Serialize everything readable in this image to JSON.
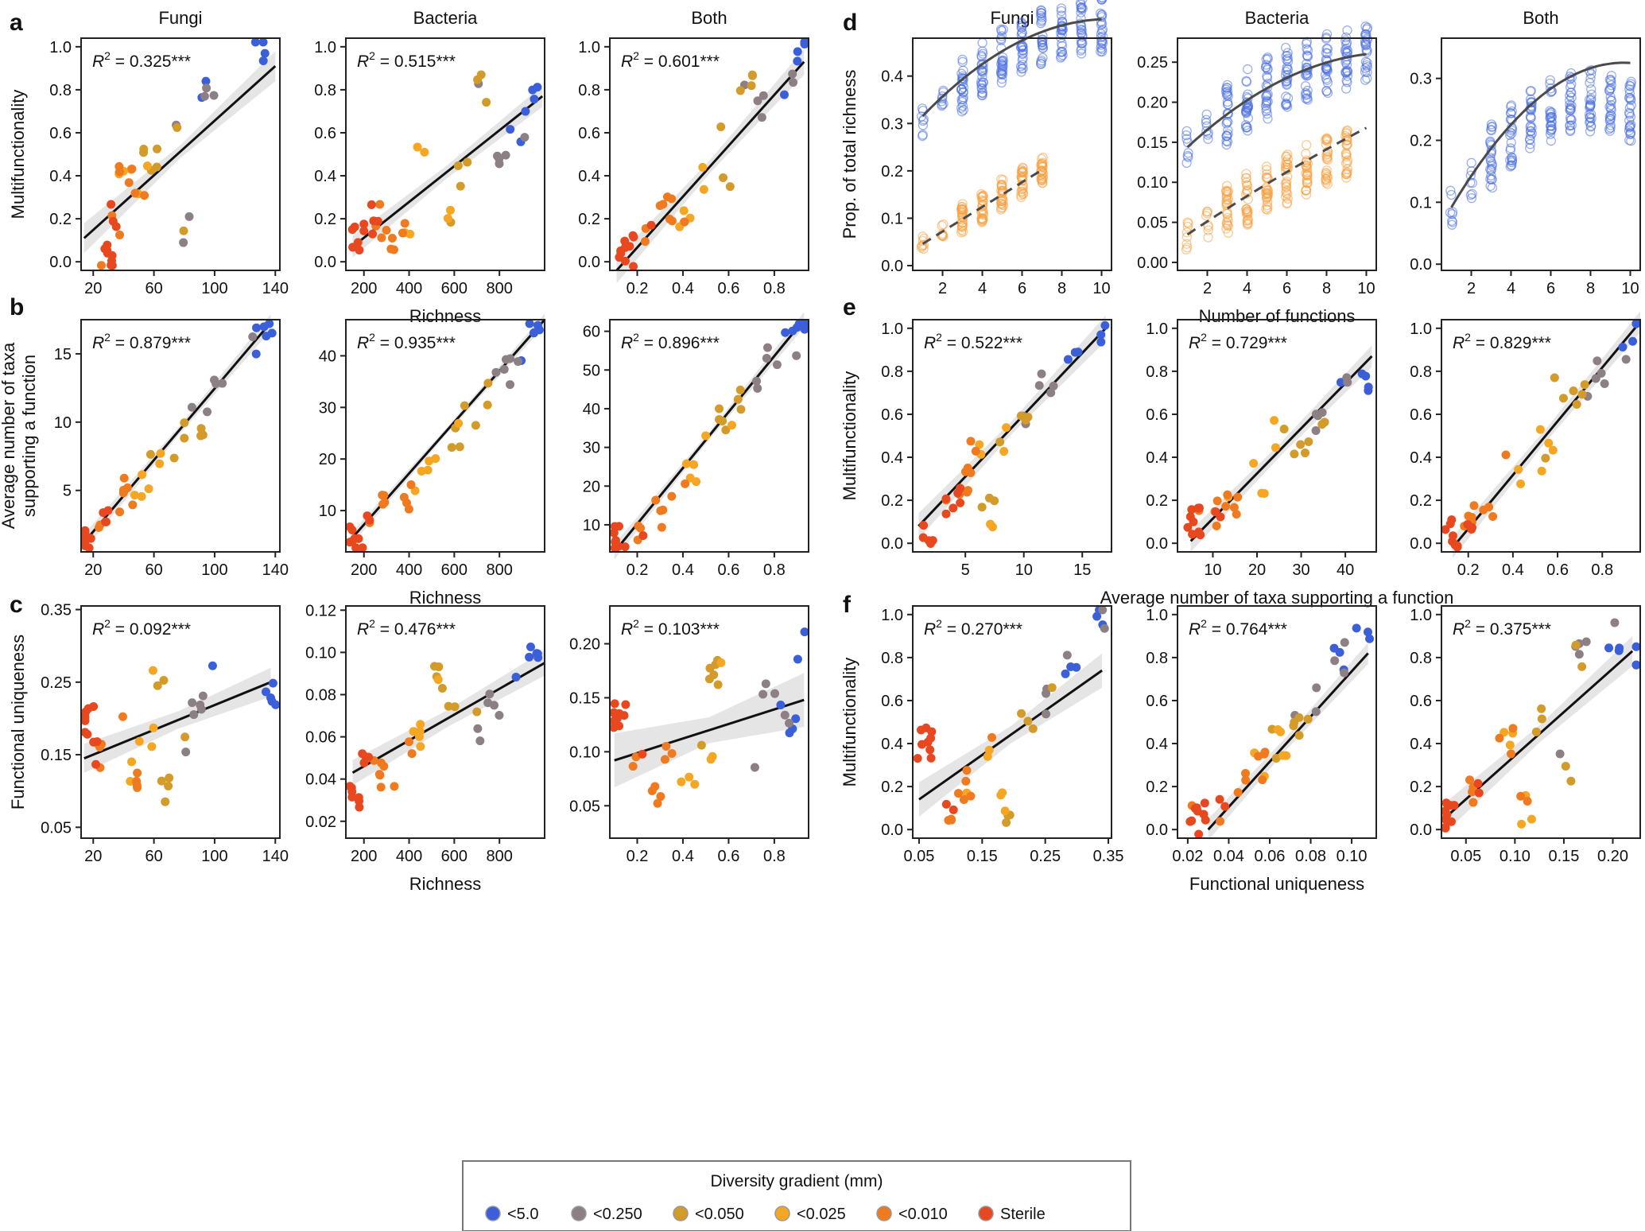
{
  "figure": {
    "panel_letters": [
      "a",
      "b",
      "c",
      "d",
      "e",
      "f"
    ],
    "column_titles": [
      "Fungi",
      "Bacteria",
      "Both"
    ]
  },
  "colors": {
    "<5.0": "#3b5fd9",
    "<0.250": "#8c8085",
    "<0.050": "#d39b2a",
    "<0.025": "#f5a623",
    "<0.010": "#f07a1f",
    "Sterile": "#e8481f"
  },
  "legend": {
    "title": "Diversity gradient (mm)",
    "items": [
      "<5.0",
      "<0.250",
      "<0.050",
      "<0.025",
      "<0.010",
      "Sterile"
    ]
  },
  "chart_data": [
    {
      "id": "a1",
      "panel": "a",
      "col": 0,
      "row": 0,
      "type": "scatter",
      "title": "Fungi",
      "xlabel": "",
      "ylabel": "Multifunctionality",
      "r2": "0.325",
      "xlim": [
        12,
        143
      ],
      "ylim": [
        -0.04,
        1.04
      ],
      "xticks": [
        20,
        60,
        100,
        140
      ],
      "yticks": [
        0.0,
        0.2,
        0.4,
        0.6,
        0.8,
        1.0
      ],
      "x_points": [
        28,
        35,
        42,
        52,
        57,
        75,
        80,
        95,
        130
      ],
      "y_points": [
        0.05,
        0.2,
        0.4,
        0.3,
        0.45,
        0.6,
        0.15,
        0.8,
        1.0
      ],
      "group_counts": [
        6,
        6,
        7,
        6,
        9,
        11
      ],
      "fit": [
        [
          14,
          0.11
        ],
        [
          140,
          0.91
        ]
      ],
      "band": [
        0.07,
        0.03
      ]
    },
    {
      "id": "a2",
      "panel": "a",
      "col": 1,
      "row": 0,
      "type": "scatter",
      "title": "Bacteria",
      "xlabel": "Richness",
      "ylabel": "",
      "r2": "0.515",
      "xlim": [
        120,
        1000
      ],
      "ylim": [
        -0.04,
        1.04
      ],
      "xticks": [
        200,
        400,
        600,
        800
      ],
      "yticks": [
        0.0,
        0.2,
        0.4,
        0.6,
        0.8,
        1.0
      ],
      "x_points": [
        170,
        240,
        300,
        380,
        470,
        560,
        650,
        720,
        800,
        880,
        950
      ],
      "y_points": [
        0.1,
        0.2,
        0.1,
        0.15,
        0.5,
        0.25,
        0.4,
        0.8,
        0.45,
        0.6,
        0.75
      ],
      "group_counts": [
        6,
        6,
        7,
        6,
        9,
        11
      ],
      "fit": [
        [
          150,
          0.07
        ],
        [
          990,
          0.77
        ]
      ],
      "band": [
        0.05,
        0.03
      ]
    },
    {
      "id": "a3",
      "panel": "a",
      "col": 2,
      "row": 0,
      "type": "scatter",
      "title": "Both",
      "xlabel": "",
      "ylabel": "",
      "r2": "0.601",
      "xlim": [
        0.08,
        0.95
      ],
      "ylim": [
        -0.04,
        1.04
      ],
      "xticks": [
        0.2,
        0.4,
        0.6,
        0.8
      ],
      "yticks": [
        0.0,
        0.2,
        0.4,
        0.6,
        0.8,
        1.0
      ],
      "x_points": [
        0.15,
        0.25,
        0.33,
        0.42,
        0.5,
        0.55,
        0.6,
        0.67,
        0.75,
        0.85,
        0.93
      ],
      "y_points": [
        0.05,
        0.15,
        0.25,
        0.2,
        0.4,
        0.6,
        0.35,
        0.8,
        0.7,
        0.85,
        1.0
      ],
      "group_counts": [
        6,
        6,
        7,
        6,
        9,
        11
      ],
      "fit": [
        [
          0.11,
          -0.04
        ],
        [
          0.93,
          0.93
        ]
      ],
      "band": [
        0.06,
        0.03
      ]
    },
    {
      "id": "b1",
      "panel": "b",
      "col": 0,
      "row": 1,
      "type": "scatter",
      "title": "",
      "xlabel": "",
      "ylabel": "Average number of taxa supporting a function",
      "r2": "0.879",
      "xlim": [
        12,
        143
      ],
      "ylim": [
        0.5,
        17.5
      ],
      "xticks": [
        20,
        60,
        100,
        140
      ],
      "yticks": [
        5,
        10,
        15
      ],
      "x_points": [
        15,
        25,
        35,
        45,
        52,
        60,
        70,
        80,
        90,
        100,
        125,
        135
      ],
      "y_points": [
        1,
        2.5,
        4,
        5,
        5.5,
        7,
        7.5,
        9,
        10,
        13,
        16,
        17
      ],
      "group_counts": [
        6,
        6,
        7,
        6,
        9,
        11
      ],
      "fit": [
        [
          14,
          1.2
        ],
        [
          137,
          17.3
        ]
      ],
      "band": [
        0.6,
        0.3
      ]
    },
    {
      "id": "b2",
      "panel": "b",
      "col": 1,
      "row": 1,
      "type": "scatter",
      "title": "",
      "xlabel": "Richness",
      "ylabel": "",
      "r2": "0.935",
      "xlim": [
        120,
        1000
      ],
      "ylim": [
        2,
        47
      ],
      "xticks": [
        200,
        400,
        600,
        800
      ],
      "yticks": [
        10,
        20,
        30,
        40
      ],
      "x_points": [
        160,
        220,
        300,
        380,
        450,
        520,
        600,
        680,
        750,
        820,
        880,
        960
      ],
      "y_points": [
        5,
        8,
        10,
        12,
        15,
        20,
        25,
        28,
        32,
        37,
        40,
        45
      ],
      "group_counts": [
        6,
        6,
        7,
        6,
        9,
        11
      ],
      "fit": [
        [
          150,
          4.8
        ],
        [
          1000,
          47
        ]
      ],
      "band": [
        1.2,
        0.6
      ]
    },
    {
      "id": "b3",
      "panel": "b",
      "col": 2,
      "row": 1,
      "type": "scatter",
      "title": "",
      "xlabel": "",
      "ylabel": "",
      "r2": "0.896",
      "xlim": [
        0.08,
        0.95
      ],
      "ylim": [
        3,
        63
      ],
      "xticks": [
        0.2,
        0.4,
        0.6,
        0.8
      ],
      "yticks": [
        10,
        20,
        30,
        40,
        50,
        60
      ],
      "x_points": [
        0.12,
        0.2,
        0.3,
        0.38,
        0.45,
        0.52,
        0.58,
        0.65,
        0.72,
        0.8,
        0.88,
        0.93
      ],
      "y_points": [
        6,
        10,
        13,
        17,
        23,
        33,
        38,
        42,
        47,
        53,
        56,
        61
      ],
      "group_counts": [
        6,
        6,
        7,
        6,
        9,
        11
      ],
      "fit": [
        [
          0.1,
          3
        ],
        [
          0.93,
          63
        ]
      ],
      "band": [
        2,
        1
      ]
    },
    {
      "id": "c1",
      "panel": "c",
      "col": 0,
      "row": 2,
      "type": "scatter",
      "title": "",
      "xlabel": "",
      "ylabel": "Functional uniqueness",
      "r2": "0.092",
      "xlim": [
        12,
        143
      ],
      "ylim": [
        0.035,
        0.355
      ],
      "xticks": [
        20,
        60,
        100,
        140
      ],
      "yticks": [
        0.05,
        0.15,
        0.25,
        0.35
      ],
      "x_points": [
        15,
        25,
        35,
        45,
        55,
        62,
        70,
        80,
        90,
        100,
        135
      ],
      "y_points": [
        0.2,
        0.15,
        0.22,
        0.12,
        0.18,
        0.25,
        0.1,
        0.16,
        0.22,
        0.28,
        0.23
      ],
      "group_counts": [
        6,
        6,
        7,
        6,
        9,
        11
      ],
      "fit": [
        [
          14,
          0.145
        ],
        [
          137,
          0.25
        ]
      ],
      "band": [
        0.02,
        0.012
      ]
    },
    {
      "id": "c2",
      "panel": "c",
      "col": 1,
      "row": 2,
      "type": "scatter",
      "title": "",
      "xlabel": "Richness",
      "ylabel": "",
      "r2": "0.476",
      "xlim": [
        120,
        1000
      ],
      "ylim": [
        0.012,
        0.122
      ],
      "xticks": [
        200,
        400,
        600,
        800
      ],
      "yticks": [
        0.02,
        0.04,
        0.06,
        0.08,
        0.1,
        0.12
      ],
      "x_points": [
        160,
        220,
        300,
        380,
        450,
        520,
        600,
        700,
        780,
        860,
        950
      ],
      "y_points": [
        0.03,
        0.045,
        0.04,
        0.055,
        0.06,
        0.09,
        0.07,
        0.065,
        0.075,
        0.09,
        0.095
      ],
      "group_counts": [
        6,
        6,
        7,
        6,
        9,
        11
      ],
      "fit": [
        [
          150,
          0.043
        ],
        [
          1000,
          0.095
        ]
      ],
      "band": [
        0.006,
        0.004
      ]
    },
    {
      "id": "c3",
      "panel": "c",
      "col": 2,
      "row": 2,
      "type": "scatter",
      "title": "",
      "xlabel": "",
      "ylabel": "",
      "r2": "0.103",
      "xlim": [
        0.08,
        0.95
      ],
      "ylim": [
        0.02,
        0.235
      ],
      "xticks": [
        0.2,
        0.4,
        0.6,
        0.8
      ],
      "yticks": [
        0.05,
        0.1,
        0.15,
        0.2
      ],
      "x_points": [
        0.12,
        0.2,
        0.28,
        0.35,
        0.42,
        0.5,
        0.55,
        0.62,
        0.7,
        0.78,
        0.86,
        0.93
      ],
      "y_points": [
        0.13,
        0.1,
        0.06,
        0.1,
        0.08,
        0.1,
        0.17,
        0.12,
        0.09,
        0.15,
        0.13,
        0.2
      ],
      "group_counts": [
        6,
        6,
        7,
        6,
        9,
        11
      ],
      "fit": [
        [
          0.1,
          0.092
        ],
        [
          0.93,
          0.148
        ]
      ],
      "band": [
        0.025,
        0.012
      ]
    },
    {
      "id": "d1",
      "panel": "d",
      "col": 3,
      "row": 0,
      "type": "scatter",
      "title": "Fungi",
      "xlabel": "",
      "ylabel": "Prop. of total richness",
      "xlim": [
        0.5,
        10.5
      ],
      "ylim": [
        -0.01,
        0.48
      ],
      "xticks": [
        2,
        4,
        6,
        8,
        10
      ],
      "yticks": [
        0.0,
        0.1,
        0.2,
        0.3,
        0.4
      ],
      "upper": {
        "xmax": 10,
        "a": 0.26,
        "b": 0.048,
        "c": -0.0023,
        "spread": 0.09
      },
      "lower": {
        "xmax": 7,
        "a": 0.02,
        "b": 0.026,
        "c": 0,
        "spread": 0.05
      },
      "fit_upper": [
        0.27,
        0.048,
        -0.0023
      ],
      "fit_lower": [
        0.02,
        0.026,
        0
      ]
    },
    {
      "id": "d2",
      "panel": "d",
      "col": 4,
      "row": 0,
      "type": "scatter",
      "title": "Bacteria",
      "xlabel": "Number of functions",
      "ylabel": "",
      "xlim": [
        0.5,
        10.5
      ],
      "ylim": [
        -0.01,
        0.28
      ],
      "xticks": [
        2,
        4,
        6,
        8,
        10
      ],
      "yticks": [
        0.0,
        0.05,
        0.1,
        0.15,
        0.2,
        0.25
      ],
      "upper": {
        "xmax": 10,
        "a": 0.12,
        "b": 0.025,
        "c": -0.0011,
        "spread": 0.06
      },
      "lower": {
        "xmax": 9,
        "a": 0.015,
        "b": 0.018,
        "c": -0.0005,
        "spread": 0.05
      },
      "fit_upper": [
        0.12,
        0.025,
        -0.0011
      ],
      "fit_lower": [
        0.018,
        0.017,
        -0.0002
      ]
    },
    {
      "id": "d3",
      "panel": "d",
      "col": 5,
      "row": 0,
      "type": "scatter",
      "title": "Both",
      "xlabel": "",
      "ylabel": "",
      "xlim": [
        0.5,
        10.5
      ],
      "ylim": [
        -0.01,
        0.365
      ],
      "xticks": [
        2,
        4,
        6,
        8,
        10
      ],
      "yticks": [
        0.0,
        0.1,
        0.2,
        0.3
      ],
      "upper": {
        "xmax": 10,
        "a": 0.04,
        "b": 0.055,
        "c": -0.0034,
        "spread": 0.08
      },
      "fit_upper": [
        0.035,
        0.06,
        -0.0031
      ]
    },
    {
      "id": "e1",
      "panel": "e",
      "col": 3,
      "row": 1,
      "type": "scatter",
      "title": "",
      "xlabel": "",
      "ylabel": "Multifunctionality",
      "r2": "0.522",
      "xlim": [
        0.5,
        17.5
      ],
      "ylim": [
        -0.04,
        1.04
      ],
      "xticks": [
        5,
        10,
        15
      ],
      "yticks": [
        0.0,
        0.2,
        0.4,
        0.6,
        0.8,
        1.0
      ],
      "x_points": [
        2,
        4,
        5,
        6,
        7,
        8,
        10,
        12,
        14,
        16.5
      ],
      "y_points": [
        0.05,
        0.2,
        0.3,
        0.45,
        0.15,
        0.5,
        0.6,
        0.75,
        0.85,
        0.95
      ],
      "group_counts": [
        6,
        6,
        7,
        6,
        9,
        11
      ],
      "fit": [
        [
          1,
          0.08
        ],
        [
          17,
          1.0
        ]
      ],
      "band": [
        0.06,
        0.03
      ]
    },
    {
      "id": "e2",
      "panel": "e",
      "col": 4,
      "row": 1,
      "type": "scatter",
      "title": "",
      "xlabel": "Average number of taxa supporting a function",
      "ylabel": "",
      "r2": "0.729",
      "xlim": [
        2,
        47
      ],
      "ylim": [
        -0.04,
        1.04
      ],
      "xticks": [
        10,
        20,
        30,
        40
      ],
      "yticks": [
        0.0,
        0.2,
        0.4,
        0.6,
        0.8,
        1.0
      ],
      "x_points": [
        6,
        10,
        14,
        20,
        25,
        30,
        35,
        40,
        44
      ],
      "y_points": [
        0.1,
        0.15,
        0.2,
        0.3,
        0.5,
        0.4,
        0.55,
        0.8,
        0.75
      ],
      "group_counts": [
        6,
        6,
        7,
        6,
        9,
        11
      ],
      "fit": [
        [
          5,
          0.01
        ],
        [
          46,
          0.87
        ]
      ],
      "band": [
        0.05,
        0.03
      ]
    },
    {
      "id": "e3",
      "panel": "e",
      "col": 5,
      "row": 1,
      "type": "scatter",
      "title": "",
      "xlabel": "",
      "ylabel": "",
      "r2": "0.829",
      "xlim": [
        0.08,
        0.97
      ],
      "ylim": [
        -0.04,
        1.04
      ],
      "xticks": [
        0.2,
        0.4,
        0.6,
        0.8
      ],
      "yticks": [
        0.0,
        0.2,
        0.4,
        0.6,
        0.8,
        1.0
      ],
      "x_points": [
        0.12,
        0.2,
        0.3,
        0.4,
        0.5,
        0.55,
        0.6,
        0.7,
        0.8,
        0.9,
        0.95
      ],
      "y_points": [
        0.05,
        0.1,
        0.2,
        0.35,
        0.5,
        0.4,
        0.75,
        0.7,
        0.8,
        0.9,
        1.0
      ],
      "group_counts": [
        6,
        6,
        7,
        6,
        9,
        11
      ],
      "fit": [
        [
          0.13,
          -0.02
        ],
        [
          0.97,
          1.03
        ]
      ],
      "band": [
        0.05,
        0.03
      ]
    },
    {
      "id": "f1",
      "panel": "f",
      "col": 3,
      "row": 2,
      "type": "scatter",
      "title": "",
      "xlabel": "",
      "ylabel": "Multifunctionality",
      "r2": "0.270",
      "xlim": [
        0.04,
        0.355
      ],
      "ylim": [
        -0.04,
        1.04
      ],
      "xticks": [
        0.05,
        0.15,
        0.25,
        0.35
      ],
      "yticks": [
        0.0,
        0.2,
        0.4,
        0.6,
        0.8,
        1.0
      ],
      "x_points": [
        0.06,
        0.1,
        0.13,
        0.16,
        0.19,
        0.22,
        0.26,
        0.29,
        0.34
      ],
      "y_points": [
        0.4,
        0.1,
        0.2,
        0.4,
        0.1,
        0.5,
        0.6,
        0.8,
        1.0
      ],
      "group_counts": [
        6,
        6,
        7,
        6,
        9,
        11
      ],
      "fit": [
        [
          0.05,
          0.14
        ],
        [
          0.34,
          0.74
        ]
      ],
      "band": [
        0.08,
        0.04
      ]
    },
    {
      "id": "f2",
      "panel": "f",
      "col": 4,
      "row": 2,
      "type": "scatter",
      "title": "",
      "xlabel": "Functional uniqueness",
      "ylabel": "",
      "r2": "0.764",
      "xlim": [
        0.015,
        0.112
      ],
      "ylim": [
        -0.04,
        1.04
      ],
      "xticks": [
        0.02,
        0.04,
        0.06,
        0.08,
        0.1
      ],
      "yticks": [
        0.0,
        0.2,
        0.4,
        0.6,
        0.8,
        1.0
      ],
      "x_points": [
        0.025,
        0.035,
        0.045,
        0.055,
        0.065,
        0.075,
        0.085,
        0.095,
        0.105
      ],
      "y_points": [
        0.05,
        0.1,
        0.2,
        0.3,
        0.4,
        0.5,
        0.6,
        0.8,
        0.9
      ],
      "group_counts": [
        6,
        6,
        7,
        6,
        9,
        11
      ],
      "fit": [
        [
          0.03,
          0.0
        ],
        [
          0.108,
          0.82
        ]
      ],
      "band": [
        0.05,
        0.03
      ]
    },
    {
      "id": "f3",
      "panel": "f",
      "col": 5,
      "row": 2,
      "type": "scatter",
      "title": "",
      "xlabel": "",
      "ylabel": "",
      "r2": "0.375",
      "xlim": [
        0.025,
        0.228
      ],
      "ylim": [
        -0.04,
        1.04
      ],
      "xticks": [
        0.05,
        0.1,
        0.15,
        0.2
      ],
      "yticks": [
        0.0,
        0.2,
        0.4,
        0.6,
        0.8,
        1.0
      ],
      "x_points": [
        0.03,
        0.06,
        0.09,
        0.11,
        0.13,
        0.15,
        0.17,
        0.2,
        0.22
      ],
      "y_points": [
        0.05,
        0.2,
        0.4,
        0.1,
        0.5,
        0.3,
        0.8,
        0.9,
        0.8
      ],
      "group_counts": [
        6,
        6,
        7,
        6,
        9,
        11
      ],
      "fit": [
        [
          0.03,
          0.06
        ],
        [
          0.22,
          0.83
        ]
      ],
      "band": [
        0.07,
        0.04
      ]
    }
  ]
}
